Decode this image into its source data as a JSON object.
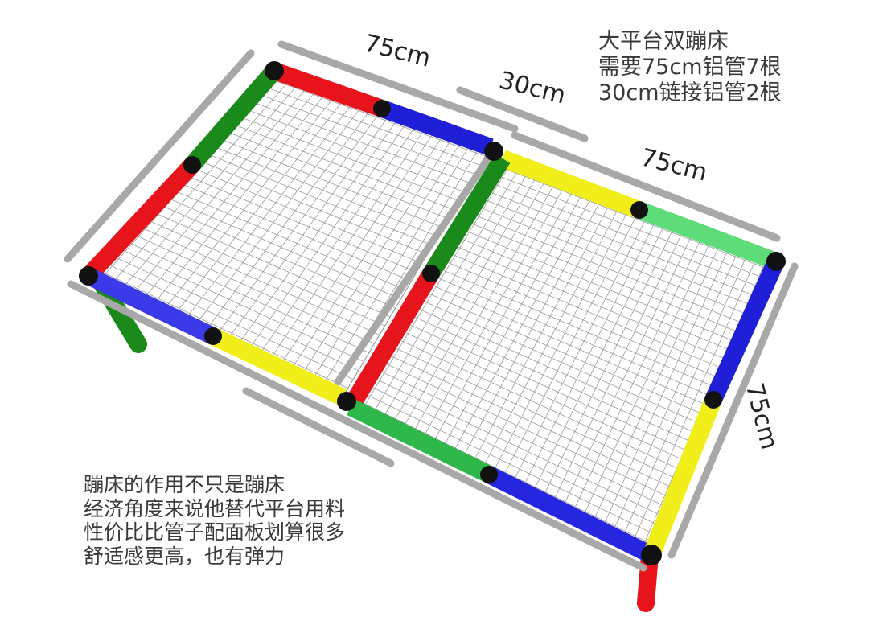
{
  "labels": {
    "dim_top_left": "75cm",
    "dim_middle": "30cm",
    "dim_top_right": "75cm",
    "dim_right": "75cm"
  },
  "title_note": {
    "lines": [
      "大平台双蹦床",
      "需要75cm铝管7根",
      "30cm链接铝管2根"
    ]
  },
  "description_note": {
    "lines": [
      "蹦床的作用不只是蹦床",
      "经济角度来说他替代平台用料",
      "性价比比管子配面板划算很多",
      "舒适感更高，也有弹力"
    ]
  },
  "colors": {
    "red": "#e8141b",
    "blue": "#1f1fd8",
    "green": "#1a8a1a",
    "yellow": "#f2ee1a",
    "light_green": "#5fdc7a",
    "light_blue": "#6b6bf0",
    "aluminum": "#b5b5b5",
    "connector": "#111111",
    "mesh_line": "#9a9a9a"
  }
}
